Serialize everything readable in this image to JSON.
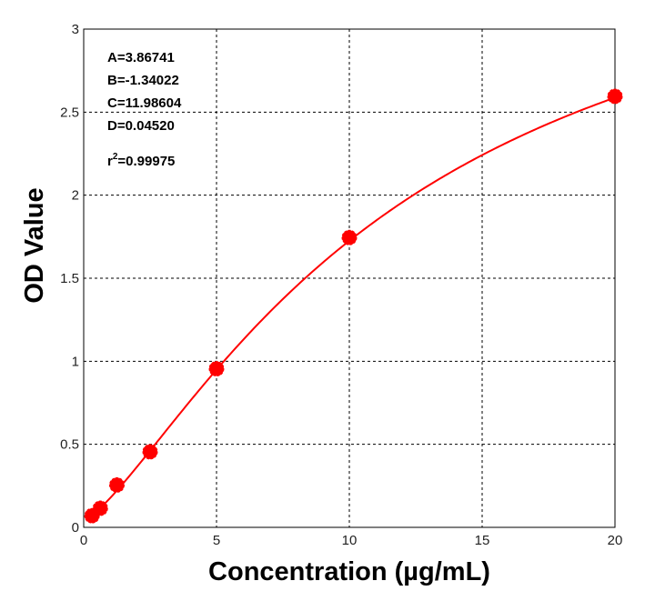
{
  "chart_data": {
    "type": "line",
    "title": "",
    "xlabel": "Concentration (µg/mL)",
    "ylabel": "OD Value",
    "xlim": [
      0,
      20
    ],
    "ylim": [
      0,
      3
    ],
    "x_ticks": [
      "0",
      "5",
      "10",
      "15",
      "20"
    ],
    "y_ticks": [
      "0",
      "0.5",
      "1",
      "1.5",
      "2",
      "2.5",
      "3"
    ],
    "grid": true,
    "grid_style": "dashed",
    "line_color": "#ff0000",
    "series": [
      {
        "x": [
          0.3125,
          0.625,
          1.25,
          2.5,
          5,
          10,
          20
        ],
        "values": [
          0.07,
          0.115,
          0.255,
          0.455,
          0.955,
          1.745,
          2.595
        ]
      }
    ],
    "fit": {
      "model": "4PL",
      "A": 3.86741,
      "B": -1.34022,
      "C": 11.98604,
      "D": 0.0452
    },
    "annotations": {
      "A": "A=3.86741",
      "B": "B=-1.34022",
      "C": "C=11.98604",
      "D": "D=0.04520",
      "r2_prefix": "r",
      "r2_sup": "2",
      "r2_value": "=0.99975"
    }
  }
}
